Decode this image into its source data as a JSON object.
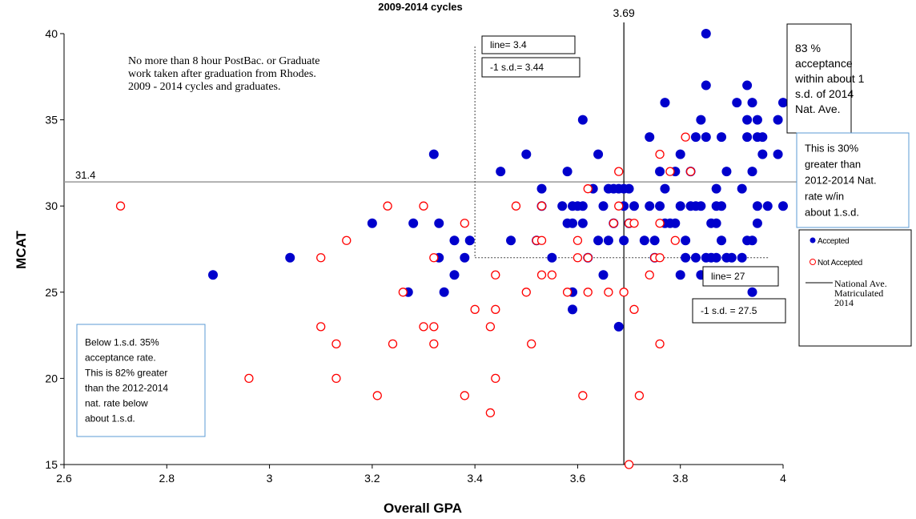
{
  "chart_data": {
    "type": "scatter",
    "title": "2009-2014 cycles",
    "x_label": "Overall GPA",
    "y_label": "MCAT",
    "xlim": [
      2.6,
      4
    ],
    "xticks": [
      2.6,
      2.8,
      3,
      3.2,
      3.4,
      3.6,
      3.8,
      4
    ],
    "ylim": [
      15,
      40
    ],
    "yticks": [
      15,
      20,
      25,
      30,
      35,
      40
    ],
    "series": [
      {
        "name": "Accepted",
        "color": "#0000cc",
        "marker": "filled",
        "x": [
          2.89,
          3.04,
          3.2,
          3.28,
          3.27,
          3.32,
          3.33,
          3.33,
          3.34,
          3.36,
          3.36,
          3.38,
          3.39,
          3.45,
          3.47,
          3.5,
          3.52,
          3.53,
          3.53,
          3.55,
          3.57,
          3.58,
          3.58,
          3.59,
          3.59,
          3.6,
          3.59,
          3.59,
          3.61,
          3.61,
          3.61,
          3.62,
          3.64,
          3.63,
          3.64,
          3.65,
          3.65,
          3.66,
          3.66,
          3.67,
          3.67,
          3.68,
          3.68,
          3.69,
          3.69,
          3.69,
          3.7,
          3.7,
          3.71,
          3.73,
          3.74,
          3.74,
          3.75,
          3.75,
          3.76,
          3.76,
          3.77,
          3.77,
          3.77,
          3.78,
          3.79,
          3.79,
          3.8,
          3.8,
          3.8,
          3.81,
          3.81,
          3.82,
          3.82,
          3.83,
          3.83,
          3.83,
          3.84,
          3.84,
          3.84,
          3.85,
          3.85,
          3.85,
          3.85,
          3.86,
          3.86,
          3.87,
          3.87,
          3.87,
          3.87,
          3.88,
          3.88,
          3.88,
          3.89,
          3.89,
          3.9,
          3.91,
          3.92,
          3.92,
          3.93,
          3.93,
          3.93,
          3.94,
          3.94,
          3.94,
          3.94,
          3.95,
          3.95,
          3.95,
          3.95,
          3.96,
          3.96,
          3.97,
          3.99,
          3.99,
          4,
          4,
          3.93
        ],
        "values": [
          26,
          27,
          29,
          29,
          25,
          33,
          29,
          27,
          25,
          28,
          26,
          27,
          28,
          32,
          28,
          33,
          28,
          31,
          30,
          27,
          30,
          32,
          29,
          30,
          29,
          30,
          24,
          25,
          35,
          30,
          29,
          27,
          33,
          31,
          28,
          30,
          26,
          31,
          28,
          31,
          29,
          31,
          23,
          31,
          30,
          28,
          31,
          29,
          30,
          28,
          34,
          30,
          28,
          27,
          32,
          30,
          36,
          31,
          29,
          29,
          29,
          32,
          33,
          30,
          26,
          28,
          27,
          32,
          30,
          34,
          30,
          27,
          35,
          30,
          26,
          40,
          37,
          34,
          27,
          29,
          27,
          31,
          30,
          29,
          27,
          34,
          30,
          28,
          27,
          32,
          27,
          36,
          27,
          31,
          35,
          34,
          37,
          36,
          32,
          28,
          25,
          35,
          34,
          29,
          30,
          33,
          34,
          30,
          35,
          33,
          36,
          30,
          28
        ]
      },
      {
        "name": "Not Accepted",
        "color": "#ff0000",
        "marker": "open",
        "x": [
          2.71,
          2.96,
          3.1,
          3.1,
          3.13,
          3.13,
          3.15,
          3.21,
          3.23,
          3.24,
          3.26,
          3.3,
          3.3,
          3.32,
          3.32,
          3.32,
          3.38,
          3.38,
          3.4,
          3.43,
          3.43,
          3.44,
          3.44,
          3.44,
          3.48,
          3.5,
          3.51,
          3.52,
          3.53,
          3.53,
          3.53,
          3.55,
          3.58,
          3.6,
          3.6,
          3.61,
          3.62,
          3.62,
          3.62,
          3.66,
          3.67,
          3.68,
          3.68,
          3.69,
          3.7,
          3.7,
          3.71,
          3.71,
          3.72,
          3.74,
          3.75,
          3.76,
          3.76,
          3.76,
          3.76,
          3.78,
          3.79,
          3.81,
          3.82
        ],
        "values": [
          30,
          20,
          27,
          23,
          22,
          20,
          28,
          19,
          30,
          22,
          25,
          30,
          23,
          23,
          22,
          27,
          29,
          19,
          24,
          23,
          18,
          26,
          24,
          20,
          30,
          25,
          22,
          28,
          30,
          28,
          26,
          26,
          25,
          28,
          27,
          19,
          31,
          27,
          25,
          25,
          29,
          32,
          30,
          25,
          29,
          15,
          29,
          24,
          19,
          26,
          27,
          33,
          29,
          27,
          22,
          32,
          28,
          34,
          32
        ]
      }
    ],
    "reference_lines": {
      "national_gpa": 3.69,
      "national_mcat": 31.4,
      "line_gpa": 3.4,
      "line_mcat": 27
    },
    "reference_line_name": [
      "National Ave.",
      "Matriculated",
      "2014"
    ],
    "annotations": [
      [
        "No more than 8 hour PostBac. or Graduate",
        "work taken after graduation from Rhodes.",
        "2009 - 2014 cycles and graduates."
      ],
      [
        "line= 3.4"
      ],
      [
        "-1 s.d.= 3.44"
      ],
      [
        "83 %",
        "acceptance",
        "within about 1",
        "s.d. of 2014",
        "Nat. Ave."
      ],
      [
        "This is 30%",
        "greater than",
        "2012-2014 Nat.",
        "rate w/in",
        "about 1.s.d."
      ],
      [
        "line= 27"
      ],
      [
        "-1 s.d. = 27.5"
      ],
      [
        "Below 1.s.d. 35%",
        "acceptance rate.",
        "This is 82% greater",
        "than the 2012-2014",
        "nat. rate below",
        "about 1.s.d."
      ]
    ]
  }
}
